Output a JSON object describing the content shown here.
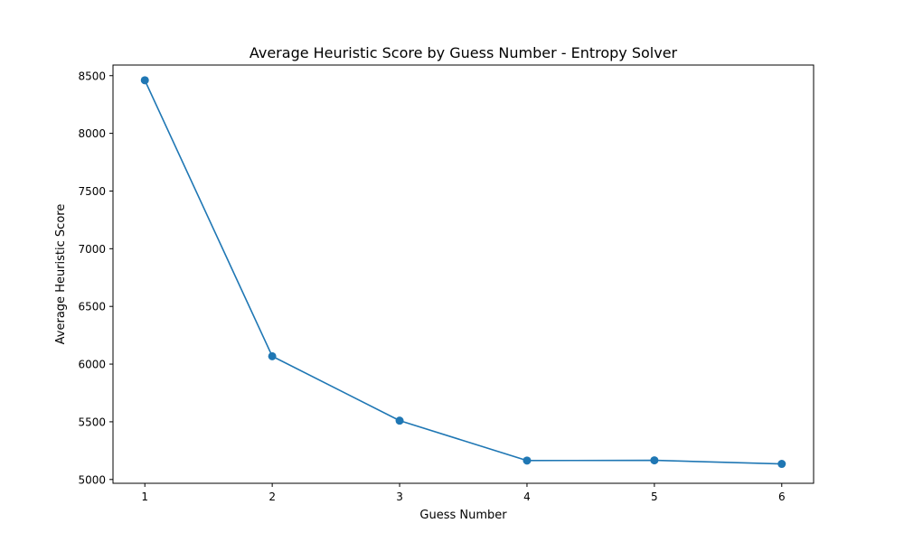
{
  "chart_data": {
    "type": "line",
    "title": "Average Heuristic Score by Guess Number - Entropy Solver",
    "xlabel": "Guess Number",
    "ylabel": "Average Heuristic Score",
    "x": [
      1,
      2,
      3,
      4,
      5,
      6
    ],
    "xticks": [
      "1",
      "2",
      "3",
      "4",
      "5",
      "6"
    ],
    "yticks": [
      "5000",
      "5500",
      "6000",
      "6500",
      "7000",
      "7500",
      "8000",
      "8500"
    ],
    "xlim": [
      0.75,
      6.25
    ],
    "ylim": [
      4967,
      8592
    ],
    "series": [
      {
        "values": [
          8460,
          6068,
          5510,
          5164,
          5166,
          5135
        ],
        "color": "#1f77b4",
        "marker": "circle"
      }
    ],
    "grid": false,
    "legend": "none"
  }
}
